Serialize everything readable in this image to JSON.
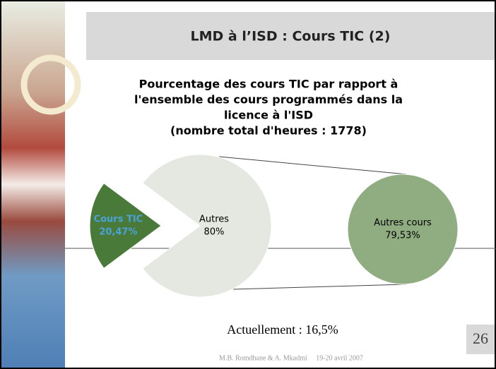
{
  "slide": {
    "title": "LMD à l’ISD : Cours TIC (2)",
    "note": "Actuellement : 16,5%",
    "footer": "M.B. Romdhane & A. Mkadmi     19-20 avril 2007",
    "page": "26"
  },
  "chart_data": {
    "type": "pie",
    "title_lines": [
      "Pourcentage des cours TIC par rapport à",
      "l'ensemble des cours programmés dans la",
      "licence à l'ISD",
      "(nombre total d'heures : 1778)"
    ],
    "categories": [
      "Cours TIC",
      "Autres"
    ],
    "values": [
      20.47,
      80
    ],
    "value_labels": [
      "20,47%",
      "80%"
    ],
    "colors": [
      "#4a7a3a",
      "#e4e8e0"
    ],
    "secondary": {
      "categories": [
        "Autres cours"
      ],
      "values": [
        79.53
      ],
      "value_labels": [
        "79,53%"
      ],
      "colors": [
        "#8fad80"
      ]
    }
  }
}
